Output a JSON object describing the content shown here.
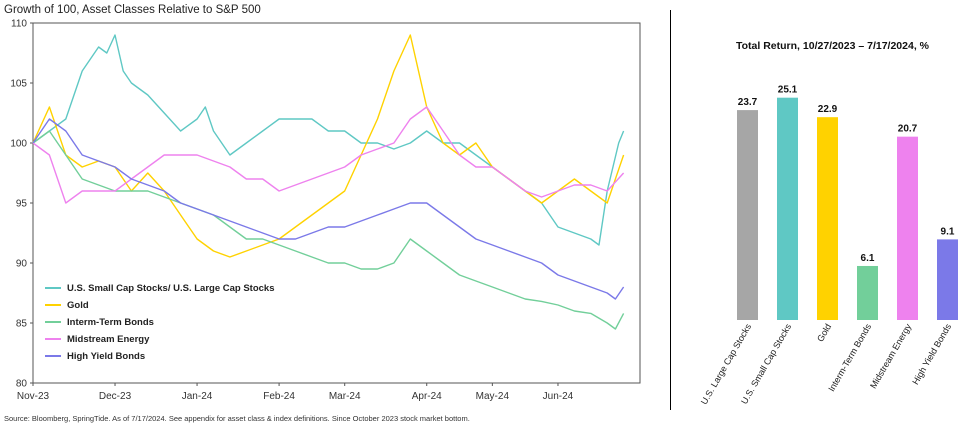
{
  "left_chart": {
    "title": "Growth of 100, Asset Classes Relative to S&P 500",
    "source": "Source: Bloomberg, SpringTide. As of 7/17/2024. See appendix for asset class & index definitions. Since October 2023 stock market bottom."
  },
  "right_chart": {
    "title": "Total Return, 10/27/2023 – 7/17/2024, %"
  },
  "chart_data": [
    {
      "type": "line",
      "title": "Growth of 100, Asset Classes Relative to S&P 500",
      "ylim": [
        80,
        110
      ],
      "yticks": [
        80,
        85,
        90,
        95,
        100,
        105,
        110
      ],
      "xlim": [
        0,
        37
      ],
      "xticks": [
        {
          "label": "Nov-23",
          "x": 0
        },
        {
          "label": "Dec-23",
          "x": 5
        },
        {
          "label": "Jan-24",
          "x": 10
        },
        {
          "label": "Feb-24",
          "x": 15
        },
        {
          "label": "Mar-24",
          "x": 19
        },
        {
          "label": "Apr-24",
          "x": 24
        },
        {
          "label": "May-24",
          "x": 28
        },
        {
          "label": "Jun-24",
          "x": 32
        }
      ],
      "grid": false,
      "legend_position": "bottom-left",
      "series": [
        {
          "name": "U.S. Small Cap Stocks/ U.S. Large Cap Stocks",
          "color": "#5fc8c4",
          "x": [
            0,
            1,
            2,
            3,
            4,
            4.5,
            5,
            5.5,
            6,
            7,
            8,
            9,
            10,
            10.5,
            11,
            12,
            13,
            14,
            15,
            16,
            17,
            18,
            19,
            20,
            21,
            22,
            23,
            24,
            25,
            26,
            27,
            28,
            29,
            30,
            31,
            32,
            33,
            34,
            34.5,
            35,
            35.7,
            36
          ],
          "values": [
            100,
            101,
            102,
            106,
            108,
            107.5,
            109,
            106,
            105,
            104,
            102.5,
            101,
            102,
            103,
            101,
            99,
            100,
            101,
            102,
            102,
            102,
            101,
            101,
            100,
            100,
            99.5,
            100,
            101,
            100,
            100,
            99,
            98,
            97,
            96,
            95,
            93,
            92.5,
            92,
            91.5,
            96,
            100,
            101
          ]
        },
        {
          "name": "Gold",
          "color": "#ffd200",
          "x": [
            0,
            1,
            2,
            3,
            4,
            5,
            6,
            7,
            8,
            9,
            10,
            11,
            12,
            13,
            14,
            15,
            16,
            17,
            18,
            19,
            20,
            21,
            22,
            23,
            24,
            25,
            26,
            27,
            28,
            29,
            30,
            31,
            32,
            33,
            34,
            35,
            36
          ],
          "values": [
            100,
            103,
            99,
            98,
            98.5,
            98,
            96,
            97.5,
            96,
            94,
            92,
            91,
            90.5,
            91,
            91.5,
            92,
            93,
            94,
            95,
            96,
            99,
            102,
            106,
            109,
            103,
            100,
            99,
            100,
            98,
            97,
            96,
            95,
            96,
            97,
            96,
            95,
            99
          ]
        },
        {
          "name": "Interm-Term Bonds",
          "color": "#72cf9a",
          "x": [
            0,
            1,
            2,
            3,
            4,
            5,
            6,
            7,
            8,
            9,
            10,
            11,
            12,
            13,
            14,
            15,
            16,
            17,
            18,
            19,
            20,
            21,
            22,
            23,
            24,
            25,
            26,
            27,
            28,
            29,
            30,
            31,
            32,
            33,
            34,
            35,
            35.5,
            36
          ],
          "values": [
            100,
            101,
            99,
            97,
            96.5,
            96,
            96,
            96,
            95.5,
            95,
            94.5,
            94,
            93,
            92,
            92,
            91.5,
            91,
            90.5,
            90,
            90,
            89.5,
            89.5,
            90,
            92,
            91,
            90,
            89,
            88.5,
            88,
            87.5,
            87,
            86.8,
            86.5,
            86,
            85.8,
            85,
            84.5,
            85.8
          ]
        },
        {
          "name": "Midstream Energy",
          "color": "#ee82ee",
          "x": [
            0,
            1,
            2,
            3,
            4,
            5,
            6,
            7,
            8,
            9,
            10,
            11,
            12,
            13,
            14,
            15,
            16,
            17,
            18,
            19,
            20,
            21,
            22,
            23,
            24,
            25,
            26,
            27,
            28,
            29,
            30,
            31,
            32,
            33,
            34,
            35,
            36
          ],
          "values": [
            100,
            99,
            95,
            96,
            96,
            96,
            97,
            98,
            99,
            99,
            99,
            98.5,
            98,
            97,
            97,
            96,
            96.5,
            97,
            97.5,
            98,
            99,
            99.5,
            100,
            102,
            103,
            101,
            99,
            98,
            98,
            97,
            96,
            95.5,
            96,
            96.5,
            96.5,
            96,
            97.5
          ]
        },
        {
          "name": "High Yield Bonds",
          "color": "#7b79e8",
          "x": [
            0,
            1,
            2,
            3,
            4,
            5,
            6,
            7,
            8,
            9,
            10,
            11,
            12,
            13,
            14,
            15,
            16,
            17,
            18,
            19,
            20,
            21,
            22,
            23,
            24,
            25,
            26,
            27,
            28,
            29,
            30,
            31,
            32,
            33,
            34,
            35,
            35.5,
            36
          ],
          "values": [
            100,
            102,
            101,
            99,
            98.5,
            98,
            97,
            96.5,
            96,
            95,
            94.5,
            94,
            93.5,
            93,
            92.5,
            92,
            92,
            92.5,
            93,
            93,
            93.5,
            94,
            94.5,
            95,
            95,
            94,
            93,
            92,
            91.5,
            91,
            90.5,
            90,
            89,
            88.5,
            88,
            87.5,
            87,
            88
          ]
        }
      ]
    },
    {
      "type": "bar",
      "title": "Total Return, 10/27/2023 – 7/17/2024, %",
      "categories": [
        "U.S. Large Cap Stocks",
        "U.S. Small Cap Stocks",
        "Gold",
        "Interm-Term Bonds",
        "Midstream Energy",
        "High Yield Bonds"
      ],
      "values": [
        23.7,
        25.1,
        22.9,
        6.1,
        20.7,
        9.1
      ],
      "labels": [
        "23.7",
        "25.1",
        "22.9",
        "6.1",
        "20.7",
        "9.1"
      ],
      "colors": [
        "#a6a6a6",
        "#5fc8c4",
        "#ffd200",
        "#72cf9a",
        "#ee82ee",
        "#7b79e8"
      ],
      "ylim": [
        0,
        28
      ]
    }
  ]
}
